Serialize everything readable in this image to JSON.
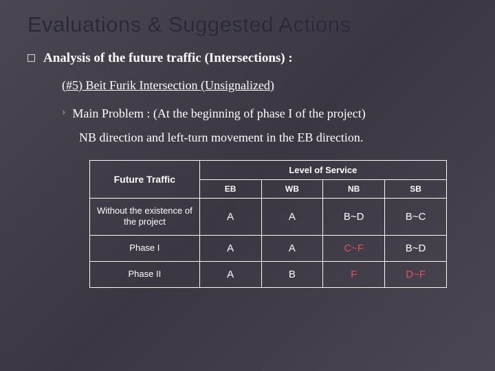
{
  "title": "Evaluations & Suggested Actions",
  "bullet_main": "Analysis of the future traffic (Intersections) :",
  "sub_heading": "(#5) Beit Furik Intersection (Unsignalized)",
  "main_problem_line1": "Main Problem : (At the beginning of phase I of the project)",
  "main_problem_line2": "NB direction and left-turn movement in the EB direction.",
  "table": {
    "future_traffic_label": "Future Traffic",
    "los_header": "Level of Service",
    "dirs": [
      "EB",
      "WB",
      "NB",
      "SB"
    ],
    "rows": [
      {
        "label": "Without the existence of the project",
        "values": [
          "A",
          "A",
          "B~D",
          "B~C"
        ],
        "red": [
          false,
          false,
          false,
          false
        ]
      },
      {
        "label": "Phase I",
        "values": [
          "A",
          "A",
          "C~F",
          "B~D"
        ],
        "red": [
          false,
          false,
          true,
          false
        ]
      },
      {
        "label": "Phase II",
        "values": [
          "A",
          "B",
          "F",
          "D~F"
        ],
        "red": [
          false,
          false,
          true,
          true
        ]
      }
    ]
  },
  "colors": {
    "red": "#e05555"
  }
}
